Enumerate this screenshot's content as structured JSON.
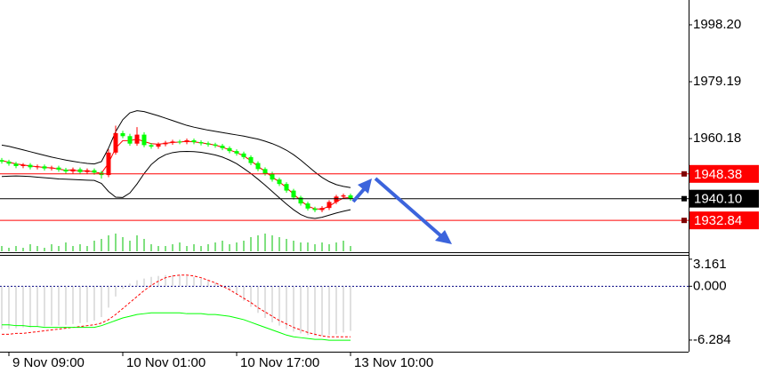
{
  "chart_data": [
    {
      "type": "candlestick",
      "x": [
        null,
        "9 Nov 09:00",
        null,
        null,
        null,
        null,
        null,
        null,
        null,
        null,
        null,
        null,
        null,
        null,
        null,
        null,
        null,
        "10 Nov 01:00",
        null,
        null,
        null,
        null,
        null,
        null,
        null,
        null,
        null,
        null,
        null,
        null,
        null,
        null,
        null,
        "10 Nov 17:00",
        null,
        null,
        null,
        null,
        null,
        null,
        null,
        null,
        null,
        null,
        null,
        null,
        null,
        null,
        null,
        "13 Nov 10:00"
      ],
      "open": [
        1953.0,
        1952.5,
        1951.8,
        1951.0,
        1951.4,
        1950.6,
        1950.9,
        1950.2,
        1950.5,
        1949.8,
        1949.2,
        1949.9,
        1949.0,
        1949.6,
        1948.8,
        1948.0,
        1955.5,
        1962.0,
        1961.0,
        1958.5,
        1961.5,
        1958.0,
        1957.5,
        1958.3,
        1958.8,
        1959.2,
        1959.0,
        1959.6,
        1959.0,
        1958.6,
        1958.2,
        1957.8,
        1957.0,
        1956.0,
        1955.2,
        1954.0,
        1952.0,
        1950.0,
        1948.5,
        1946.5,
        1945.0,
        1942.8,
        1940.5,
        1938.5,
        1936.8,
        1936.3,
        1937.0,
        1939.0,
        1940.8,
        1941.2
      ],
      "high": [
        1953.7,
        1953.1,
        1952.4,
        1952.0,
        1952.0,
        1951.5,
        1951.5,
        1951.1,
        1951.1,
        1950.4,
        1950.5,
        1950.5,
        1950.2,
        1950.2,
        1949.4,
        1956.6,
        1964.5,
        1962.8,
        1961.8,
        1964.0,
        1962.3,
        1958.7,
        1958.9,
        1959.4,
        1959.8,
        1959.8,
        1960.2,
        1960.2,
        1959.6,
        1959.2,
        1958.8,
        1958.4,
        1957.6,
        1956.6,
        1955.8,
        1954.6,
        1952.6,
        1950.6,
        1949.1,
        1947.1,
        1945.6,
        1943.4,
        1941.1,
        1939.1,
        1937.4,
        1937.6,
        1939.6,
        1941.4,
        1941.8,
        1941.8
      ],
      "low": [
        1951.8,
        1951.1,
        1950.3,
        1950.3,
        1949.9,
        1949.9,
        1949.5,
        1949.5,
        1949.1,
        1948.5,
        1948.5,
        1948.3,
        1948.3,
        1948.1,
        1946.8,
        1947.3,
        1954.8,
        1960.3,
        1957.8,
        1957.8,
        1957.3,
        1956.8,
        1956.8,
        1957.6,
        1958.1,
        1958.3,
        1958.3,
        1958.3,
        1957.9,
        1957.5,
        1957.1,
        1956.3,
        1955.3,
        1954.5,
        1953.3,
        1951.3,
        1949.3,
        1947.8,
        1945.8,
        1944.3,
        1942.1,
        1939.8,
        1937.8,
        1936.1,
        1935.6,
        1935.6,
        1936.3,
        1938.3,
        1940.1,
        1939.4
      ],
      "close": [
        1952.5,
        1951.8,
        1951.0,
        1951.4,
        1950.6,
        1950.9,
        1950.2,
        1950.5,
        1949.8,
        1949.2,
        1949.9,
        1949.0,
        1949.6,
        1948.8,
        1948.0,
        1955.5,
        1962.0,
        1961.0,
        1958.5,
        1961.5,
        1958.0,
        1957.5,
        1958.3,
        1958.8,
        1959.2,
        1959.0,
        1959.6,
        1959.0,
        1958.6,
        1958.2,
        1957.8,
        1957.0,
        1956.0,
        1955.2,
        1954.0,
        1952.0,
        1950.0,
        1948.5,
        1946.5,
        1945.0,
        1942.8,
        1940.5,
        1938.5,
        1936.8,
        1936.3,
        1937.0,
        1939.0,
        1940.8,
        1941.2,
        1940.1
      ],
      "up_color": "#ff0000",
      "down_color": "#00ff00",
      "lines": [
        {
          "color": "#000000",
          "values": [
            1958.0,
            1957.6,
            1957.0,
            1956.4,
            1955.8,
            1955.2,
            1954.6,
            1954.0,
            1953.5,
            1953.0,
            1952.6,
            1952.2,
            1951.9,
            1951.7,
            1952.5,
            1957.0,
            1962.5,
            1966.5,
            1968.8,
            1969.5,
            1969.2,
            1968.5,
            1967.8,
            1967.0,
            1966.2,
            1965.4,
            1964.6,
            1964.0,
            1963.5,
            1963.0,
            1962.6,
            1962.2,
            1961.8,
            1961.4,
            1961.0,
            1960.5,
            1960.0,
            1959.3,
            1958.5,
            1957.5,
            1956.3,
            1954.8,
            1953.0,
            1951.0,
            1949.0,
            1947.2,
            1945.8,
            1944.8,
            1944.2,
            1943.8
          ]
        },
        {
          "color": "#000000",
          "values": [
            1947.5,
            1947.6,
            1947.7,
            1947.6,
            1947.5,
            1947.3,
            1947.1,
            1946.9,
            1946.7,
            1946.6,
            1946.5,
            1946.4,
            1946.3,
            1946.2,
            1945.2,
            1942.5,
            1940.6,
            1940.5,
            1942.0,
            1945.0,
            1948.5,
            1951.5,
            1953.5,
            1954.8,
            1955.5,
            1955.8,
            1955.9,
            1955.8,
            1955.6,
            1955.2,
            1954.7,
            1954.0,
            1953.0,
            1951.8,
            1950.2,
            1948.5,
            1946.6,
            1944.6,
            1942.5,
            1940.4,
            1938.3,
            1936.4,
            1934.8,
            1933.8,
            1933.5,
            1933.9,
            1934.6,
            1935.3,
            1935.9,
            1936.4
          ]
        },
        {
          "color": "#ff0000",
          "values": [
            1952.8,
            1952.3,
            1951.7,
            1951.4,
            1951.0,
            1950.8,
            1950.5,
            1950.4,
            1950.0,
            1949.6,
            1949.7,
            1949.3,
            1949.4,
            1949.0,
            1948.6,
            1952.0,
            1957.0,
            1959.5,
            1959.5,
            1960.0,
            1959.2,
            1958.5,
            1958.3,
            1958.6,
            1958.9,
            1959.0,
            1959.3,
            1959.1,
            1958.8,
            1958.4,
            1958.0,
            1957.3,
            1956.4,
            1955.5,
            1954.4,
            1952.8,
            1950.9,
            1949.2,
            1947.3,
            1945.7,
            1943.8,
            1941.6,
            1939.5,
            1937.6,
            1936.7,
            1936.6,
            1937.6,
            1939.1,
            1940.3,
            1940.5
          ]
        }
      ],
      "volume": [
        3,
        2,
        3,
        2,
        4,
        3,
        2,
        4,
        3,
        5,
        3,
        4,
        3,
        6,
        7,
        9,
        10,
        8,
        6,
        9,
        7,
        4,
        3,
        3,
        4,
        5,
        3,
        4,
        3,
        4,
        5,
        6,
        4,
        5,
        6,
        8,
        9,
        10,
        9,
        8,
        7,
        6,
        5,
        5,
        4,
        5,
        4,
        5,
        6,
        3
      ],
      "volume_color": "#00c000",
      "price_levels": [
        {
          "price": 1948.38,
          "color": "#ff0000"
        },
        {
          "price": {
            "value": 1940.1,
            "label": "1940.10"
          },
          "color": "#000000"
        },
        {
          "price": 1932.84,
          "color": "#ff0000"
        }
      ],
      "ylim": [
        1922.5,
        2006.5
      ],
      "yticks": [
        {
          "value": 1998.2,
          "label": "1998.20"
        },
        1979.19,
        1960.18
      ]
    },
    {
      "type": "macd",
      "histogram": [
        -5.0,
        -5.0,
        -4.9,
        -4.8,
        -4.8,
        -4.7,
        -4.7,
        -4.6,
        -4.6,
        -4.5,
        -4.4,
        -4.3,
        -4.2,
        -4.0,
        -3.6,
        -2.5,
        -1.2,
        -0.3,
        0.3,
        0.7,
        0.9,
        1.1,
        1.2,
        1.3,
        1.3,
        1.3,
        1.2,
        1.1,
        0.9,
        0.7,
        0.4,
        0.1,
        -0.4,
        -1.0,
        -1.7,
        -2.4,
        -3.1,
        -3.7,
        -4.2,
        -4.6,
        -5.0,
        -5.3,
        -5.5,
        -5.7,
        -5.8,
        -5.8,
        -5.7,
        -5.6,
        -5.4,
        -5.2
      ],
      "hist_color": "#c0c0c0",
      "signal": {
        "color": "#ff0000",
        "values": [
          -5.6,
          -5.6,
          -5.5,
          -5.5,
          -5.4,
          -5.3,
          -5.2,
          -5.1,
          -5.0,
          -4.9,
          -4.8,
          -4.7,
          -4.6,
          -4.5,
          -4.3,
          -3.9,
          -3.3,
          -2.6,
          -1.9,
          -1.2,
          -0.5,
          0.1,
          0.6,
          1.0,
          1.2,
          1.3,
          1.3,
          1.2,
          1.0,
          0.7,
          0.4,
          0.0,
          -0.4,
          -0.9,
          -1.4,
          -1.9,
          -2.5,
          -3.0,
          -3.5,
          -4.0,
          -4.4,
          -4.8,
          -5.1,
          -5.4,
          -5.6,
          -5.8,
          -5.9,
          -5.9,
          -5.9,
          -5.9
        ]
      },
      "line": {
        "color": "#00ff00",
        "values": [
          -4.5,
          -4.5,
          -4.6,
          -4.6,
          -4.7,
          -4.7,
          -4.8,
          -4.8,
          -4.8,
          -4.8,
          -4.8,
          -4.8,
          -4.8,
          -4.8,
          -4.6,
          -4.3,
          -4.0,
          -3.7,
          -3.5,
          -3.3,
          -3.2,
          -3.1,
          -3.1,
          -3.1,
          -3.1,
          -3.1,
          -3.2,
          -3.2,
          -3.2,
          -3.3,
          -3.3,
          -3.4,
          -3.5,
          -3.7,
          -3.9,
          -4.2,
          -4.5,
          -4.8,
          -5.1,
          -5.4,
          -5.7,
          -5.9,
          -6.0,
          -6.1,
          -6.2,
          -6.2,
          -6.3,
          -6.3,
          -6.3,
          -6.3
        ]
      },
      "ylim": [
        -7.64,
        3.56
      ],
      "yticks": [
        3.161,
        {
          "value": 0,
          "label": "0.000"
        },
        -6.284
      ]
    }
  ]
}
